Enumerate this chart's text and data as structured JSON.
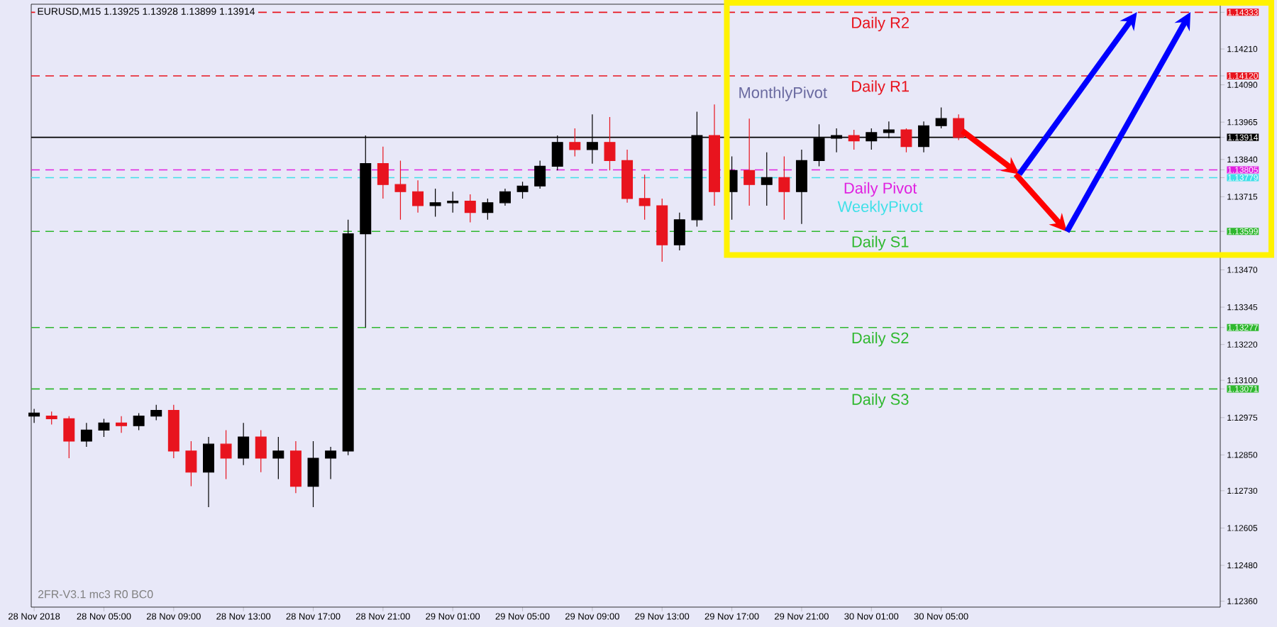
{
  "chart_data": {
    "type": "candlestick",
    "title": "EURUSD,M15 1.13925 1.13928 1.13899 1.13914",
    "x": [
      "2018-11-28T01:00",
      "2018-11-28T02:00",
      "2018-11-28T03:00",
      "2018-11-28T04:00",
      "2018-11-28T05:00",
      "2018-11-28T06:00",
      "2018-11-28T07:00",
      "2018-11-28T08:00",
      "2018-11-28T09:00",
      "2018-11-28T10:00",
      "2018-11-28T11:00",
      "2018-11-28T12:00",
      "2018-11-28T13:00",
      "2018-11-28T14:00",
      "2018-11-28T15:00",
      "2018-11-28T16:00",
      "2018-11-28T17:00",
      "2018-11-28T18:00",
      "2018-11-28T19:00",
      "2018-11-28T20:00",
      "2018-11-28T21:00",
      "2018-11-28T22:00",
      "2018-11-28T23:00",
      "2018-11-29T00:00",
      "2018-11-29T01:00",
      "2018-11-29T02:00",
      "2018-11-29T03:00",
      "2018-11-29T04:00",
      "2018-11-29T05:00",
      "2018-11-29T06:00",
      "2018-11-29T07:00",
      "2018-11-29T08:00",
      "2018-11-29T09:00",
      "2018-11-29T10:00",
      "2018-11-29T11:00",
      "2018-11-29T12:00",
      "2018-11-29T13:00",
      "2018-11-29T14:00",
      "2018-11-29T15:00",
      "2018-11-29T16:00",
      "2018-11-29T17:00",
      "2018-11-29T18:00",
      "2018-11-29T19:00",
      "2018-11-29T20:00",
      "2018-11-29T21:00",
      "2018-11-29T22:00",
      "2018-11-29T23:00",
      "2018-11-30T00:00",
      "2018-11-30T01:00",
      "2018-11-30T02:00",
      "2018-11-30T03:00",
      "2018-11-30T04:00",
      "2018-11-30T05:00",
      "2018-11-30T06:00"
    ],
    "ohlc": [
      [
        1.1298,
        1.13004,
        1.12957,
        1.1299
      ],
      [
        1.1298,
        1.12995,
        1.12952,
        1.12971
      ],
      [
        1.12971,
        1.1298,
        1.12839,
        1.12896
      ],
      [
        1.12896,
        1.12957,
        1.12877,
        1.12933
      ],
      [
        1.12933,
        1.12971,
        1.1291,
        1.12957
      ],
      [
        1.12957,
        1.1298,
        1.12924,
        1.12948
      ],
      [
        1.12948,
        1.1299,
        1.12933,
        1.1298
      ],
      [
        1.1298,
        1.13018,
        1.12966,
        1.12999
      ],
      [
        1.12999,
        1.13018,
        1.12839,
        1.12863
      ],
      [
        1.12863,
        1.12896,
        1.12745,
        1.12792
      ],
      [
        1.12792,
        1.1291,
        1.12675,
        1.12886
      ],
      [
        1.12886,
        1.12933,
        1.12769,
        1.12839
      ],
      [
        1.12839,
        1.12957,
        1.12816,
        1.1291
      ],
      [
        1.1291,
        1.12933,
        1.12792,
        1.12839
      ],
      [
        1.12839,
        1.1291,
        1.12769,
        1.12863
      ],
      [
        1.12863,
        1.12896,
        1.12722,
        1.12745
      ],
      [
        1.12745,
        1.12896,
        1.12675,
        1.12839
      ],
      [
        1.12839,
        1.12877,
        1.12769,
        1.12863
      ],
      [
        1.12863,
        1.13638,
        1.12849,
        1.13591
      ],
      [
        1.13591,
        1.1392,
        1.13277,
        1.13826
      ],
      [
        1.13826,
        1.13883,
        1.13709,
        1.13756
      ],
      [
        1.13756,
        1.13836,
        1.13638,
        1.13732
      ],
      [
        1.13732,
        1.1377,
        1.13662,
        1.13685
      ],
      [
        1.13685,
        1.13742,
        1.13648,
        1.13695
      ],
      [
        1.13695,
        1.13732,
        1.13662,
        1.137
      ],
      [
        1.137,
        1.13723,
        1.13629,
        1.13662
      ],
      [
        1.13662,
        1.13709,
        1.13638,
        1.13695
      ],
      [
        1.13695,
        1.13742,
        1.13685,
        1.13732
      ],
      [
        1.13732,
        1.13765,
        1.13709,
        1.13751
      ],
      [
        1.13751,
        1.13836,
        1.13742,
        1.13817
      ],
      [
        1.13817,
        1.1392,
        1.13803,
        1.13897
      ],
      [
        1.13897,
        1.13944,
        1.1385,
        1.13873
      ],
      [
        1.13873,
        1.13991,
        1.13826,
        1.13897
      ],
      [
        1.13897,
        1.13982,
        1.13803,
        1.13836
      ],
      [
        1.13836,
        1.13873,
        1.13695,
        1.13709
      ],
      [
        1.13709,
        1.13789,
        1.13638,
        1.13685
      ],
      [
        1.13685,
        1.13709,
        1.13497,
        1.13554
      ],
      [
        1.13554,
        1.13662,
        1.13535,
        1.13638
      ],
      [
        1.13638,
        1.14,
        1.13615,
        1.1392
      ],
      [
        1.1392,
        1.14024,
        1.13685,
        1.13732
      ],
      [
        1.13732,
        1.1385,
        1.13638,
        1.13803
      ],
      [
        1.13803,
        1.13977,
        1.13685,
        1.13756
      ],
      [
        1.13756,
        1.13864,
        1.13685,
        1.13779
      ],
      [
        1.13779,
        1.1385,
        1.13638,
        1.13732
      ],
      [
        1.13732,
        1.13873,
        1.13624,
        1.13836
      ],
      [
        1.13836,
        1.13958,
        1.13817,
        1.13911
      ],
      [
        1.13911,
        1.13944,
        1.13864,
        1.1392
      ],
      [
        1.1392,
        1.13939,
        1.13873,
        1.13902
      ],
      [
        1.13902,
        1.13944,
        1.13873,
        1.1393
      ],
      [
        1.1393,
        1.13967,
        1.13911,
        1.13939
      ],
      [
        1.13939,
        1.13944,
        1.13864,
        1.13883
      ],
      [
        1.13883,
        1.13967,
        1.13864,
        1.13953
      ],
      [
        1.13953,
        1.14014,
        1.13944,
        1.13977
      ],
      [
        1.13977,
        1.13991,
        1.13905,
        1.13914
      ]
    ],
    "colors": [
      "#000000",
      "#e8141e",
      "#e8141e",
      "#000000",
      "#000000",
      "#e8141e",
      "#000000",
      "#000000",
      "#e8141e",
      "#e8141e",
      "#000000",
      "#e8141e",
      "#000000",
      "#e8141e",
      "#000000",
      "#e8141e",
      "#000000",
      "#000000",
      "#000000",
      "#000000",
      "#e8141e",
      "#e8141e",
      "#e8141e",
      "#000000",
      "#000000",
      "#e8141e",
      "#000000",
      "#000000",
      "#000000",
      "#000000",
      "#000000",
      "#e8141e",
      "#000000",
      "#e8141e",
      "#e8141e",
      "#e8141e",
      "#e8141e",
      "#000000",
      "#000000",
      "#e8141e",
      "#000000",
      "#e8141e",
      "#000000",
      "#e8141e",
      "#000000",
      "#000000",
      "#000000",
      "#e8141e",
      "#000000",
      "#000000",
      "#e8141e",
      "#000000",
      "#000000",
      "#e8141e"
    ],
    "xlim": [
      "2018-11-28T00:50",
      "2018-11-30T21:00"
    ],
    "xticks": [
      {
        "value": "2018-11-28T01:00",
        "label": "28 Nov 2018"
      },
      {
        "value": "2018-11-28T05:00",
        "label": "28 Nov 05:00"
      },
      {
        "value": "2018-11-28T09:00",
        "label": "28 Nov 09:00"
      },
      {
        "value": "2018-11-28T13:00",
        "label": "28 Nov 13:00"
      },
      {
        "value": "2018-11-28T17:00",
        "label": "28 Nov 17:00"
      },
      {
        "value": "2018-11-28T21:00",
        "label": "28 Nov 21:00"
      },
      {
        "value": "2018-11-29T01:00",
        "label": "29 Nov 01:00"
      },
      {
        "value": "2018-11-29T05:00",
        "label": "29 Nov 05:00"
      },
      {
        "value": "2018-11-29T09:00",
        "label": "29 Nov 09:00"
      },
      {
        "value": "2018-11-29T13:00",
        "label": "29 Nov 13:00"
      },
      {
        "value": "2018-11-29T17:00",
        "label": "29 Nov 17:00"
      },
      {
        "value": "2018-11-29T21:00",
        "label": "29 Nov 21:00"
      },
      {
        "value": "2018-11-30T01:00",
        "label": "30 Nov 01:00"
      },
      {
        "value": "2018-11-30T05:00",
        "label": "30 Nov 05:00"
      }
    ],
    "ylim": [
      1.1234,
      1.1436
    ],
    "yticks": [
      {
        "value": 1.14333,
        "label": "1.14333"
      },
      {
        "value": 1.1421,
        "label": "1.14210"
      },
      {
        "value": 1.1412,
        "label": "1.14120"
      },
      {
        "value": 1.1409,
        "label": "1.14090"
      },
      {
        "value": 1.13965,
        "label": "1.13965"
      },
      {
        "value": 1.13914,
        "label": "1.13914"
      },
      {
        "value": 1.1384,
        "label": "1.13840"
      },
      {
        "value": 1.13805,
        "label": "1.13805"
      },
      {
        "value": 1.13779,
        "label": "1.13779"
      },
      {
        "value": 1.13715,
        "label": "1.13715"
      },
      {
        "value": 1.13599,
        "label": "1.13599"
      },
      {
        "value": 1.1347,
        "label": "1.13470"
      },
      {
        "value": 1.13345,
        "label": "1.13345"
      },
      {
        "value": 1.13277,
        "label": "1.13277"
      },
      {
        "value": 1.1322,
        "label": "1.13220"
      },
      {
        "value": 1.131,
        "label": "1.13100"
      },
      {
        "value": 1.13071,
        "label": "1.13071"
      },
      {
        "value": 1.12975,
        "label": "1.12975"
      },
      {
        "value": 1.1285,
        "label": "1.12850"
      },
      {
        "value": 1.1273,
        "label": "1.12730"
      },
      {
        "value": 1.12605,
        "label": "1.12605"
      },
      {
        "value": 1.1248,
        "label": "1.12480"
      },
      {
        "value": 1.1236,
        "label": "1.12360"
      }
    ],
    "ref_lines": [
      {
        "axis": "y",
        "value": 1.14333,
        "label": "Daily R2",
        "color": "#e8141e",
        "line_style": "dashed"
      },
      {
        "axis": "y",
        "value": 1.1412,
        "label": "Daily R1",
        "color": "#e8141e",
        "line_style": "dashed"
      },
      {
        "axis": "y",
        "value": 1.13914,
        "color": "#000000",
        "line_style": "solid"
      },
      {
        "axis": "y",
        "value": 1.13805,
        "label": "Daily Pivot",
        "color": "#e020e0",
        "line_style": "dashed"
      },
      {
        "axis": "y",
        "value": 1.13779,
        "label": "WeeklyPivot",
        "color": "#3fe0e8",
        "line_style": "dashed"
      },
      {
        "axis": "y",
        "value": 1.13599,
        "label": "Daily S1",
        "color": "#2fb82f",
        "line_style": "dashed"
      },
      {
        "axis": "y",
        "value": 1.13277,
        "label": "Daily S2",
        "color": "#2fb82f",
        "line_style": "dashed"
      },
      {
        "axis": "y",
        "value": 1.13071,
        "label": "Daily S3",
        "color": "#2fb82f",
        "line_style": "dashed"
      }
    ],
    "annotations": [
      "MonthlyPivot",
      "2FR-V3.1 mc3 R0 BC0"
    ]
  }
}
